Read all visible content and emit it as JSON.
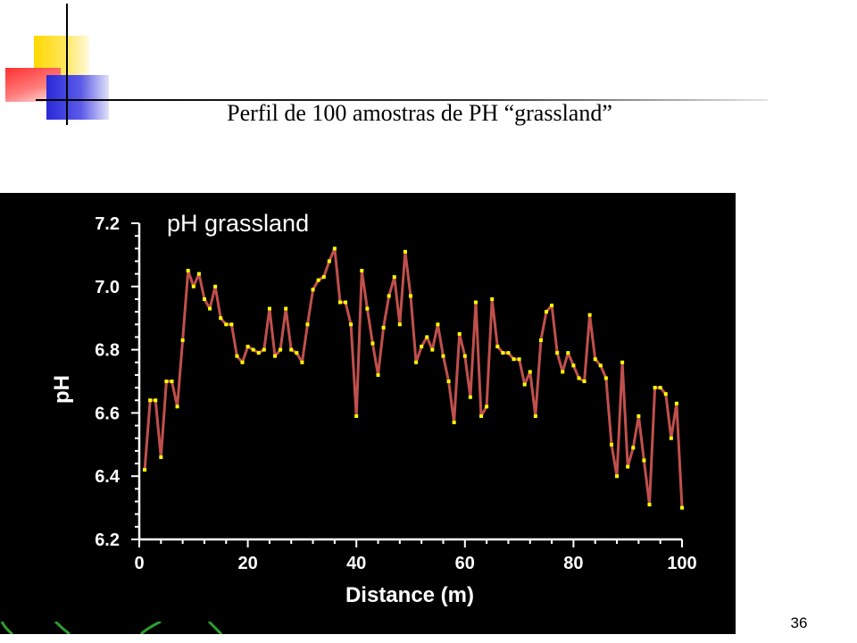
{
  "slide": {
    "title": "Perfil de 100 amostras de PH “grassland”",
    "page_number": "36"
  },
  "colors": {
    "line": "#c0504d",
    "marker": "#ffff00",
    "background": "#000000",
    "axis": "#ffffff"
  },
  "chart_data": {
    "type": "line",
    "title": "pH grassland",
    "xlabel": "Distance (m)",
    "ylabel": "pH",
    "xlim": [
      0,
      100
    ],
    "ylim": [
      6.2,
      7.2
    ],
    "x_ticks": [
      "0",
      "20",
      "40",
      "60",
      "80",
      "100"
    ],
    "y_ticks": [
      "6.2",
      "6.4",
      "6.6",
      "6.8",
      "7.0",
      "7.2"
    ],
    "grid": false,
    "legend": "none",
    "x": [
      1,
      2,
      3,
      4,
      5,
      6,
      7,
      8,
      9,
      10,
      11,
      12,
      13,
      14,
      15,
      16,
      17,
      18,
      19,
      20,
      21,
      22,
      23,
      24,
      25,
      26,
      27,
      28,
      29,
      30,
      31,
      32,
      33,
      34,
      35,
      36,
      37,
      38,
      39,
      40,
      41,
      42,
      43,
      44,
      45,
      46,
      47,
      48,
      49,
      50,
      51,
      52,
      53,
      54,
      55,
      56,
      57,
      58,
      59,
      60,
      61,
      62,
      63,
      64,
      65,
      66,
      67,
      68,
      69,
      70,
      71,
      72,
      73,
      74,
      75,
      76,
      77,
      78,
      79,
      80,
      81,
      82,
      83,
      84,
      85,
      86,
      87,
      88,
      89,
      90,
      91,
      92,
      93,
      94,
      95,
      96,
      97,
      98,
      99,
      100
    ],
    "values": [
      6.42,
      6.64,
      6.64,
      6.46,
      6.7,
      6.7,
      6.62,
      6.83,
      7.05,
      7.0,
      7.04,
      6.96,
      6.93,
      7.0,
      6.9,
      6.88,
      6.88,
      6.78,
      6.76,
      6.81,
      6.8,
      6.79,
      6.8,
      6.93,
      6.78,
      6.8,
      6.93,
      6.8,
      6.79,
      6.76,
      6.88,
      6.99,
      7.02,
      7.03,
      7.08,
      7.12,
      6.95,
      6.95,
      6.88,
      6.59,
      7.05,
      6.93,
      6.82,
      6.72,
      6.87,
      6.97,
      7.03,
      6.88,
      7.11,
      6.97,
      6.76,
      6.81,
      6.84,
      6.8,
      6.88,
      6.78,
      6.7,
      6.57,
      6.85,
      6.78,
      6.65,
      6.95,
      6.59,
      6.62,
      6.96,
      6.81,
      6.79,
      6.79,
      6.77,
      6.77,
      6.69,
      6.73,
      6.59,
      6.83,
      6.92,
      6.94,
      6.79,
      6.73,
      6.79,
      6.75,
      6.71,
      6.7,
      6.91,
      6.77,
      6.75,
      6.71,
      6.5,
      6.4,
      6.76,
      6.43,
      6.49,
      6.59,
      6.45,
      6.31,
      6.68,
      6.68,
      6.66,
      6.52,
      6.63,
      6.3
    ]
  }
}
